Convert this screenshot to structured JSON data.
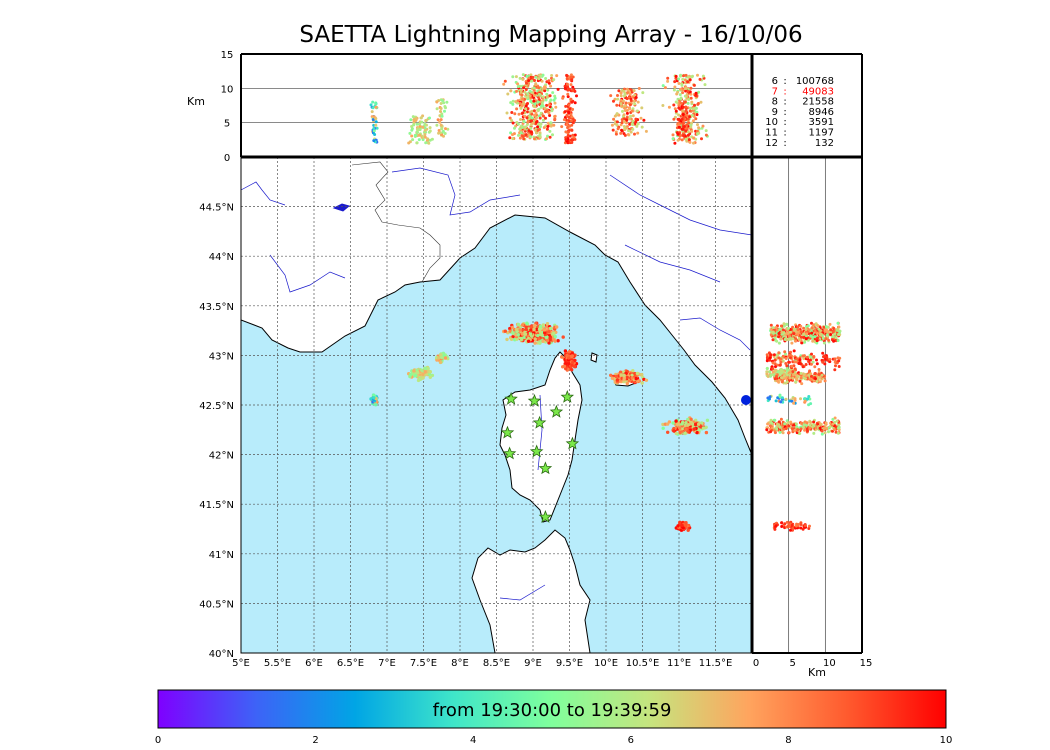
{
  "title": "SAETTA Lightning Mapping Array - 16/10/06",
  "colorbar": {
    "label": "from 19:30:00 to 19:39:59",
    "min": 0,
    "max": 10,
    "ticks": [
      "0",
      "2",
      "4",
      "6",
      "8",
      "10"
    ],
    "stops": [
      "#7f00ff",
      "#3d63f7",
      "#00a5e5",
      "#3fe6c9",
      "#80ff9c",
      "#c6e47e",
      "#ffa45e",
      "#ff5a2e",
      "#ff0000"
    ]
  },
  "colors": {
    "ocean": "#b8ecfb",
    "coast": "#000000",
    "river": "#1a1acc",
    "border": "#333333",
    "station_fill": "#7be84a",
    "station_stroke": "#2a6a10",
    "highlight_count": "#ff0000"
  },
  "map": {
    "lon_range": [
      5.0,
      12.0
    ],
    "lat_range": [
      40.0,
      45.0
    ],
    "x_ticks": [
      "5°E",
      "5.5°E",
      "6°E",
      "6.5°E",
      "7°E",
      "7.5°E",
      "8°E",
      "8.5°E",
      "9°E",
      "9.5°E",
      "10°E",
      "10.5°E",
      "11°E",
      "11.5°E"
    ],
    "y_ticks": [
      "40°N",
      "40.5°N",
      "41°N",
      "41.5°N",
      "42°N",
      "42.5°N",
      "43°N",
      "43.5°N",
      "44°N",
      "44.5°N"
    ],
    "grid": "dotted"
  },
  "top_panel": {
    "ylabel": "Km",
    "y_range": [
      0,
      15
    ],
    "y_ticks": [
      "0",
      "5",
      "10",
      "15"
    ],
    "gridlines_km": [
      5,
      10
    ]
  },
  "right_panel": {
    "xlabel": "Km",
    "x_range": [
      0,
      15
    ],
    "x_ticks": [
      "0",
      "5",
      "10",
      "15"
    ],
    "gridlines_km": [
      5,
      10
    ]
  },
  "counts": [
    {
      "label": "6",
      "value": "100768",
      "highlight": false
    },
    {
      "label": "7",
      "value": "49083",
      "highlight": true
    },
    {
      "label": "8",
      "value": "21558",
      "highlight": false
    },
    {
      "label": "9",
      "value": "8946",
      "highlight": false
    },
    {
      "label": "10",
      "value": "3591",
      "highlight": false
    },
    {
      "label": "11",
      "value": "1197",
      "highlight": false
    },
    {
      "label": "12",
      "value": "132",
      "highlight": false
    }
  ],
  "chart_data": {
    "type": "scatter",
    "title": "SAETTA Lightning Mapping Array - 16/10/06",
    "time_window": "from 19:30:00 to 19:39:59",
    "color_variable_range": [
      0,
      10
    ],
    "stations": [
      {
        "lon": 8.7,
        "lat": 42.56
      },
      {
        "lon": 9.02,
        "lat": 42.54
      },
      {
        "lon": 9.32,
        "lat": 42.43
      },
      {
        "lon": 9.47,
        "lat": 42.58
      },
      {
        "lon": 9.09,
        "lat": 42.32
      },
      {
        "lon": 8.65,
        "lat": 42.22
      },
      {
        "lon": 8.68,
        "lat": 42.01
      },
      {
        "lon": 9.05,
        "lat": 42.03
      },
      {
        "lon": 9.54,
        "lat": 42.11
      },
      {
        "lon": 9.17,
        "lat": 41.86
      },
      {
        "lon": 9.17,
        "lat": 41.37
      }
    ],
    "flash_clusters": [
      {
        "lon": 9.0,
        "lat": 43.22,
        "lon_spread": 0.45,
        "lat_spread": 0.13,
        "alt_range_km": [
          2.5,
          12
        ],
        "time_range": [
          5,
          10
        ],
        "n": 420
      },
      {
        "lon": 7.46,
        "lat": 42.82,
        "lon_spread": 0.2,
        "lat_spread": 0.08,
        "alt_range_km": [
          2,
          6
        ],
        "time_range": [
          5,
          7.5
        ],
        "n": 90
      },
      {
        "lon": 7.75,
        "lat": 42.98,
        "lon_spread": 0.1,
        "lat_spread": 0.06,
        "alt_range_km": [
          3,
          9
        ],
        "time_range": [
          5,
          8
        ],
        "n": 40
      },
      {
        "lon": 6.83,
        "lat": 42.55,
        "lon_spread": 0.07,
        "lat_spread": 0.07,
        "alt_range_km": [
          2,
          8
        ],
        "time_range": [
          1,
          8
        ],
        "n": 40
      },
      {
        "lon": 9.5,
        "lat": 42.95,
        "lon_spread": 0.12,
        "lat_spread": 0.13,
        "alt_range_km": [
          2,
          12
        ],
        "time_range": [
          8,
          10
        ],
        "n": 120
      },
      {
        "lon": 10.3,
        "lat": 42.78,
        "lon_spread": 0.3,
        "lat_spread": 0.08,
        "alt_range_km": [
          3,
          10
        ],
        "time_range": [
          6,
          10
        ],
        "n": 160
      },
      {
        "lon": 11.1,
        "lat": 42.28,
        "lon_spread": 0.35,
        "lat_spread": 0.1,
        "alt_range_km": [
          2,
          12
        ],
        "time_range": [
          5,
          10
        ],
        "n": 240
      },
      {
        "lon": 11.05,
        "lat": 41.28,
        "lon_spread": 0.12,
        "lat_spread": 0.06,
        "alt_range_km": [
          3,
          8
        ],
        "time_range": [
          8,
          10
        ],
        "n": 60
      }
    ]
  }
}
